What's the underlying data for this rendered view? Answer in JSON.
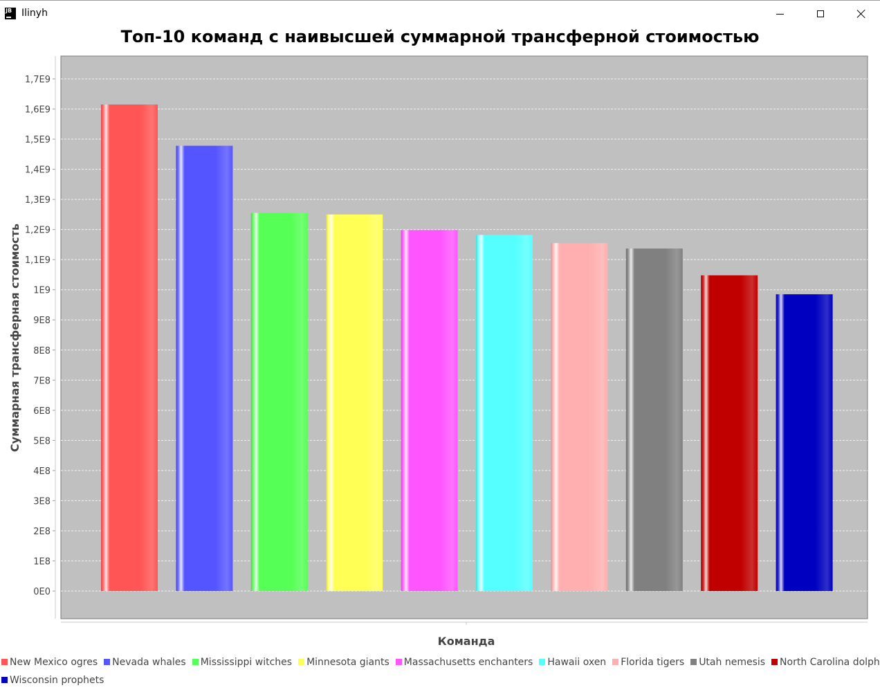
{
  "window": {
    "app_icon_text": "JB",
    "title": "Ilinyh",
    "minimize_label": "Minimize",
    "maximize_label": "Maximize",
    "close_label": "Close"
  },
  "chart_data": {
    "type": "bar",
    "title": "Топ-10 команд с наивысшей суммарной трансферной стоимостью",
    "xlabel": "Команда",
    "ylabel": "Суммарная трансферная стоимость",
    "ylim": [
      0,
      1790000000
    ],
    "yticks": [
      0,
      100000000,
      200000000,
      300000000,
      400000000,
      500000000,
      600000000,
      700000000,
      800000000,
      900000000,
      1000000000,
      1100000000,
      1200000000,
      1300000000,
      1400000000,
      1500000000,
      1600000000,
      1700000000
    ],
    "ytick_labels": [
      "0E0",
      "1E8",
      "2E8",
      "3E8",
      "4E8",
      "5E8",
      "6E8",
      "7E8",
      "8E8",
      "9E8",
      "1E9",
      "1,1E9",
      "1,2E9",
      "1,3E9",
      "1,4E9",
      "1,5E9",
      "1,6E9",
      "1,7E9"
    ],
    "grid": true,
    "legend_position": "bottom",
    "series": [
      {
        "name": "New Mexico ogres",
        "value": 1615000000,
        "color": "#ff5555"
      },
      {
        "name": "Nevada whales",
        "value": 1478000000,
        "color": "#5555ff"
      },
      {
        "name": "Mississippi witches",
        "value": 1255000000,
        "color": "#55ff55"
      },
      {
        "name": "Minnesota giants",
        "value": 1250000000,
        "color": "#ffff55"
      },
      {
        "name": "Massachusetts enchanters",
        "value": 1198000000,
        "color": "#ff55ff"
      },
      {
        "name": "Hawaii oxen",
        "value": 1182000000,
        "color": "#55ffff"
      },
      {
        "name": "Florida tigers",
        "value": 1155000000,
        "color": "#ffafaf"
      },
      {
        "name": "Utah nemesis",
        "value": 1137000000,
        "color": "#808080"
      },
      {
        "name": "North Carolina dolphins",
        "value": 1048000000,
        "color": "#c00000"
      },
      {
        "name": "Wisconsin prophets",
        "value": 985000000,
        "color": "#0000c0"
      }
    ]
  }
}
